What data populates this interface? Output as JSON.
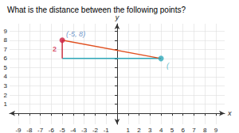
{
  "chart_data": {
    "type": "line",
    "title": "What is the distance between the following points?",
    "xlabel": "x",
    "ylabel": "y",
    "xlim": [
      -9.8,
      9.8
    ],
    "ylim": [
      -1.2,
      9.8
    ],
    "xticks": [
      -9,
      -8,
      -7,
      -6,
      -5,
      -4,
      -3,
      -2,
      -1,
      1,
      2,
      3,
      4,
      5,
      6,
      7,
      8,
      9
    ],
    "yticks": [
      1,
      2,
      3,
      4,
      5,
      6,
      7,
      8,
      9
    ],
    "grid": true,
    "series": [
      {
        "type": "line",
        "x": [
          -5,
          4
        ],
        "values": [
          6,
          6
        ],
        "color": "#30AABC"
      },
      {
        "type": "line",
        "x": [
          -5,
          -5
        ],
        "values": [
          8,
          6
        ],
        "color": "#CC3344"
      },
      {
        "type": "line",
        "x": [
          -5,
          4
        ],
        "values": [
          8,
          6
        ],
        "color": "#E05020"
      },
      {
        "type": "scatter",
        "x": [
          -5
        ],
        "values": [
          8
        ],
        "color": "#CC2244",
        "marker": "circle"
      },
      {
        "type": "scatter",
        "x": [
          4
        ],
        "values": [
          6
        ],
        "color": "#30AABC",
        "marker": "circle"
      }
    ],
    "annotations": [
      {
        "text": "(-5, 8)",
        "x": -5,
        "y": 8,
        "color": "#4477BB"
      },
      {
        "text": "(",
        "x": 4,
        "y": 6,
        "color": "#30AABC"
      },
      {
        "text": "2",
        "x": -5,
        "y": 7,
        "color": "#CC2244"
      }
    ]
  }
}
